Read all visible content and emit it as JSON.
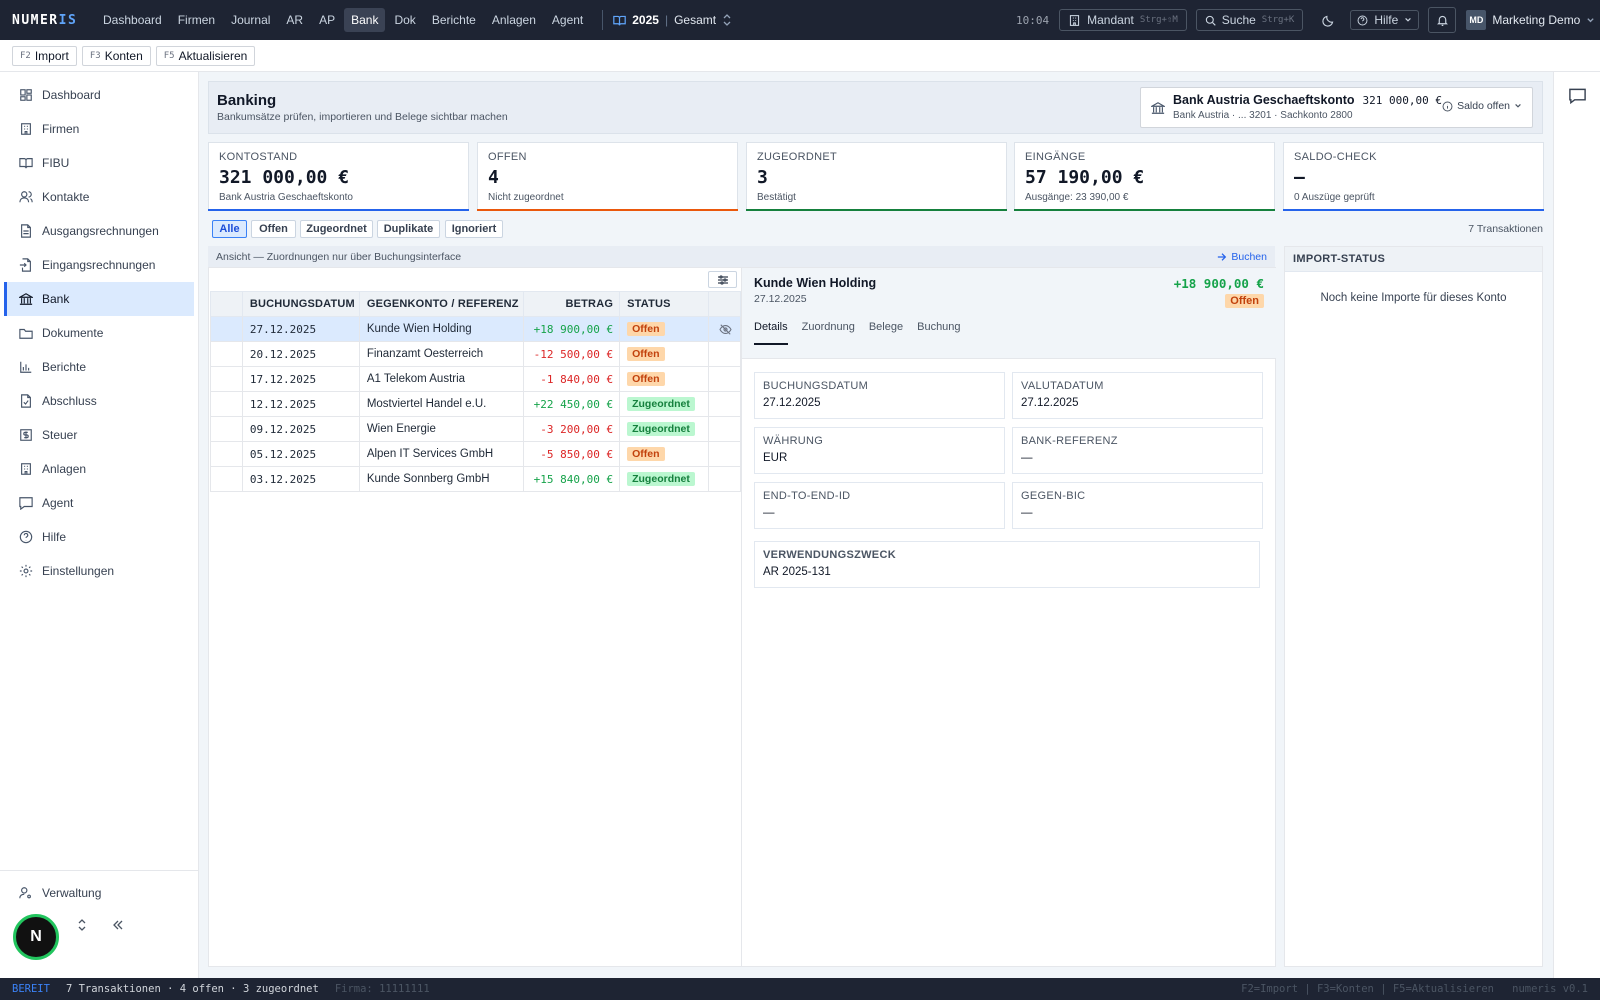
{
  "app": {
    "logo_a": "NUMER",
    "logo_b": "IS"
  },
  "nav": {
    "items": [
      "Dashboard",
      "Firmen",
      "Journal",
      "AR",
      "AP",
      "Bank",
      "Dok",
      "Berichte",
      "Anlagen",
      "Agent"
    ],
    "active": "Bank",
    "year": "2025",
    "scope": "Gesamt"
  },
  "topbar": {
    "time": "10:04",
    "mandant": "Mandant",
    "mandant_kbd": "Strg+⇧M",
    "search": "Suche",
    "search_kbd": "Strg+K",
    "help": "Hilfe",
    "avatar": "MD",
    "user": "Marketing Demo"
  },
  "toolbar": [
    {
      "key": "F2",
      "label": "Import"
    },
    {
      "key": "F3",
      "label": "Konten"
    },
    {
      "key": "F5",
      "label": "Aktualisieren"
    }
  ],
  "sidebar": {
    "items": [
      {
        "label": "Dashboard",
        "icon": "dashboard-icon"
      },
      {
        "label": "Firmen",
        "icon": "building-icon"
      },
      {
        "label": "FIBU",
        "icon": "book-icon"
      },
      {
        "label": "Kontakte",
        "icon": "users-icon"
      },
      {
        "label": "Ausgangsrechnungen",
        "icon": "document-icon"
      },
      {
        "label": "Eingangsrechnungen",
        "icon": "document-import-icon"
      },
      {
        "label": "Bank",
        "icon": "bank-icon"
      },
      {
        "label": "Dokumente",
        "icon": "folder-icon"
      },
      {
        "label": "Berichte",
        "icon": "chart-icon"
      },
      {
        "label": "Abschluss",
        "icon": "document-check-icon"
      },
      {
        "label": "Steuer",
        "icon": "tax-icon"
      },
      {
        "label": "Anlagen",
        "icon": "building-icon"
      },
      {
        "label": "Agent",
        "icon": "chat-icon"
      },
      {
        "label": "Hilfe",
        "icon": "help-icon"
      },
      {
        "label": "Einstellungen",
        "icon": "gear-icon"
      }
    ],
    "active": "Bank",
    "admin": "Verwaltung",
    "avatar": "N"
  },
  "page": {
    "title": "Banking",
    "subtitle": "Bankumsätze prüfen, importieren und Belege sichtbar machen"
  },
  "account": {
    "name": "Bank Austria Geschaeftskonto",
    "balance": "321 000,00 €",
    "meta": "Bank Austria · ... 3201 · Sachkonto 2800",
    "saldo": "Saldo offen"
  },
  "kpis": [
    {
      "label": "KONTOSTAND",
      "value": "321 000,00 €",
      "sub": "Bank Austria Geschaeftskonto",
      "color": "#2563eb"
    },
    {
      "label": "OFFEN",
      "value": "4",
      "sub": "Nicht zugeordnet",
      "color": "#ea580c"
    },
    {
      "label": "ZUGEORDNET",
      "value": "3",
      "sub": "Bestätigt",
      "color": "#15803d"
    },
    {
      "label": "EINGÄNGE",
      "value": "57 190,00 €",
      "sub": "Ausgänge: 23 390,00 €",
      "color": "#15803d"
    },
    {
      "label": "SALDO-CHECK",
      "value": "—",
      "sub": "0 Auszüge geprüft",
      "color": "#2563eb"
    }
  ],
  "filters": [
    "Alle",
    "Offen",
    "Zugeordnet",
    "Duplikate",
    "Ignoriert"
  ],
  "filter_active": "Alle",
  "count": "7 Transaktionen",
  "viewbar": {
    "text": "Ansicht — Zuordnungen nur über Buchungsinterface",
    "action": "Buchen"
  },
  "table": {
    "headers": [
      "BUCHUNGSDATUM",
      "GEGENKONTO / REFERENZ",
      "BETRAG",
      "STATUS"
    ],
    "rows": [
      {
        "date": "27.12.2025",
        "ref": "Kunde Wien Holding",
        "amount": "+18 900,00 €",
        "status": "Offen"
      },
      {
        "date": "20.12.2025",
        "ref": "Finanzamt Oesterreich",
        "amount": "-12 500,00 €",
        "status": "Offen"
      },
      {
        "date": "17.12.2025",
        "ref": "A1 Telekom Austria",
        "amount": "-1 840,00 €",
        "status": "Offen"
      },
      {
        "date": "12.12.2025",
        "ref": "Mostviertel Handel e.U.",
        "amount": "+22 450,00 €",
        "status": "Zugeordnet"
      },
      {
        "date": "09.12.2025",
        "ref": "Wien Energie",
        "amount": "-3 200,00 €",
        "status": "Zugeordnet"
      },
      {
        "date": "05.12.2025",
        "ref": "Alpen IT Services GmbH",
        "amount": "-5 850,00 €",
        "status": "Offen"
      },
      {
        "date": "03.12.2025",
        "ref": "Kunde Sonnberg GmbH",
        "amount": "+15 840,00 €",
        "status": "Zugeordnet"
      }
    ]
  },
  "detail": {
    "title": "Kunde Wien Holding",
    "date": "27.12.2025",
    "amount": "+18 900,00 €",
    "status": "Offen",
    "tabs": [
      "Details",
      "Zuordnung",
      "Belege",
      "Buchung"
    ],
    "active_tab": "Details",
    "fields": [
      {
        "label": "BUCHUNGSDATUM",
        "value": "27.12.2025"
      },
      {
        "label": "VALUTADATUM",
        "value": "27.12.2025"
      },
      {
        "label": "WÄHRUNG",
        "value": "EUR"
      },
      {
        "label": "BANK-REFERENZ",
        "value": "—"
      },
      {
        "label": "END-TO-END-ID",
        "value": "—"
      },
      {
        "label": "GEGEN-BIC",
        "value": "—"
      }
    ],
    "purpose_label": "VERWENDUNGSZWECK",
    "purpose": "AR 2025-131"
  },
  "import": {
    "title": "IMPORT-STATUS",
    "empty": "Noch keine Importe für dieses Konto"
  },
  "statusbar": {
    "state": "BEREIT",
    "summary": "7 Transaktionen · 4 offen · 3 zugeordnet",
    "firma": "Firma: 11111111",
    "keys": "F2=Import | F3=Konten | F5=Aktualisieren",
    "version": "numeris v0.1"
  },
  "colors": {
    "nav_bg": "#1e2433",
    "accent": "#2563eb",
    "positive": "#16a34a",
    "negative": "#dc2626",
    "open": "#ea580c",
    "assigned": "#15803d"
  }
}
